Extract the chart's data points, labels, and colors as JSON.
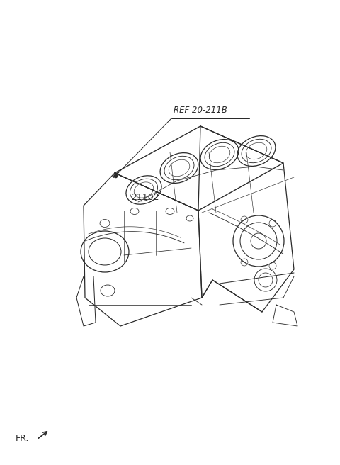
{
  "bg_color": "#ffffff",
  "line_color": "#2a2a2a",
  "label_ref": "REF 20-211B",
  "label_part": "21102",
  "label_fr": "FR.",
  "lw": 0.9,
  "fig_w": 4.8,
  "fig_h": 6.56,
  "dpi": 100
}
